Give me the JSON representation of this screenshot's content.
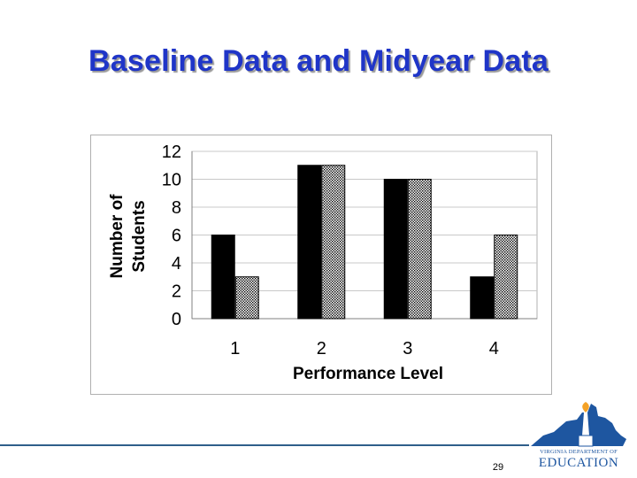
{
  "slide": {
    "title": "Baseline Data and Midyear Data",
    "page_number": "29"
  },
  "logo": {
    "line1": "VIRGINIA DEPARTMENT OF",
    "line2": "EDUCATION",
    "colors": {
      "state": "#1e56a0",
      "flame": "#f4a227",
      "text": "#1e56a0"
    }
  },
  "chart_data": {
    "type": "bar",
    "categories": [
      "1",
      "2",
      "3",
      "4"
    ],
    "series": [
      {
        "values": [
          6,
          11,
          10,
          3
        ],
        "fill": "#000000"
      },
      {
        "values": [
          3,
          11,
          10,
          6
        ],
        "fill": "dotted-pattern"
      }
    ],
    "xlabel": "Performance Level",
    "ylabel": [
      "Number of",
      "Students"
    ],
    "ylim": [
      0,
      12
    ],
    "yticks": [
      0,
      2,
      4,
      6,
      8,
      10,
      12
    ],
    "grid": true,
    "legend": "none"
  }
}
